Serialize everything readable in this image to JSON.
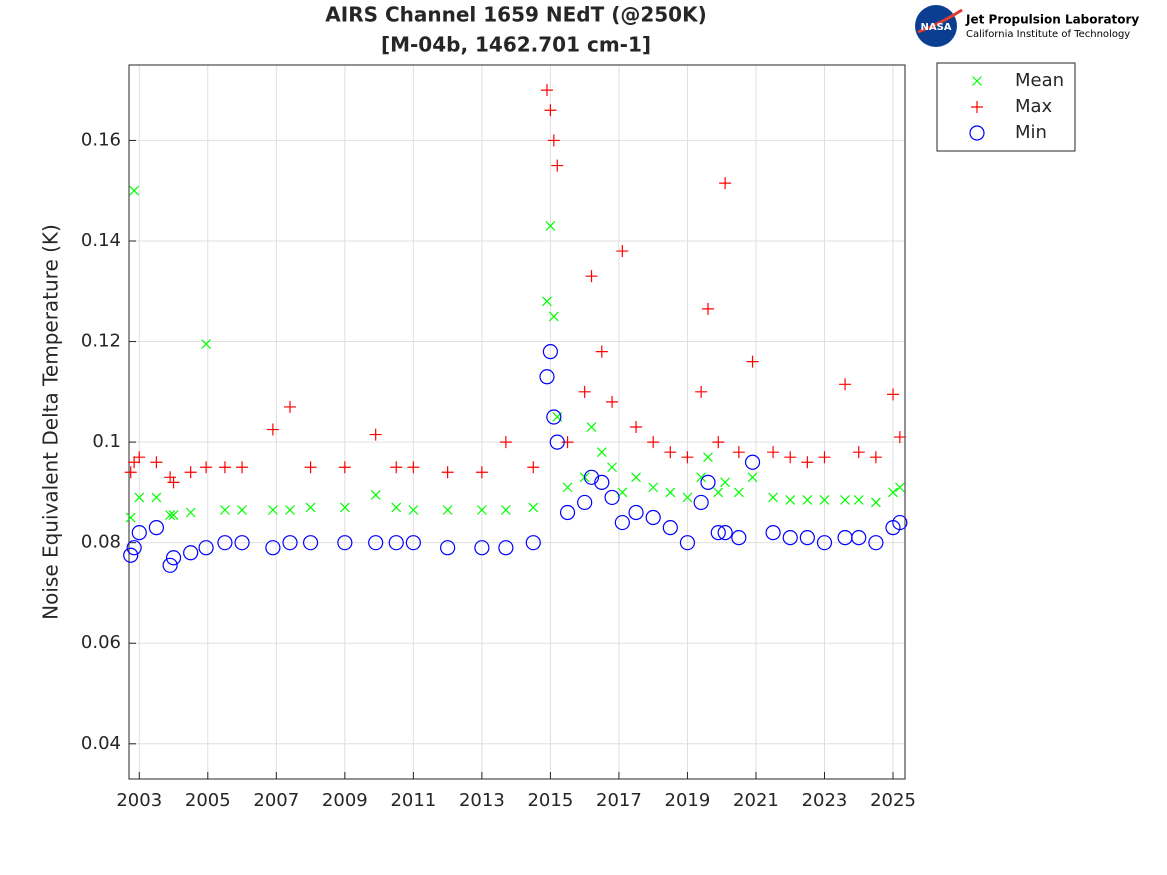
{
  "logo": {
    "badge": "NASA",
    "name": "Jet Propulsion Laboratory",
    "institute": "California Institute of Technology"
  },
  "chart_data": {
    "type": "scatter",
    "title": "AIRS Channel 1659 NEdT (@250K)",
    "subtitle": "[M-04b, 1462.701 cm-1]",
    "y_label": "Noise Equivalent Delta Temperature (K)",
    "xlim": [
      2002.7,
      2025.35
    ],
    "ylim": [
      0.033,
      0.175
    ],
    "xticks": [
      2003,
      2005,
      2007,
      2009,
      2011,
      2013,
      2015,
      2017,
      2019,
      2021,
      2023,
      2025
    ],
    "yticks": [
      0.04,
      0.06,
      0.08,
      0.1,
      0.12,
      0.14,
      0.16
    ],
    "grid": true,
    "legend": "outside-upper-right",
    "x": [
      2002.75,
      2002.85,
      2003.0,
      2003.5,
      2003.9,
      2004.0,
      2004.5,
      2004.95,
      2005.5,
      2006.0,
      2006.9,
      2007.4,
      2008.0,
      2009.0,
      2009.9,
      2010.5,
      2011.0,
      2012.0,
      2013.0,
      2013.7,
      2014.5,
      2014.9,
      2015.0,
      2015.1,
      2015.2,
      2015.5,
      2016.0,
      2016.2,
      2016.5,
      2016.8,
      2017.1,
      2017.5,
      2018.0,
      2018.5,
      2019.0,
      2019.4,
      2019.6,
      2019.9,
      2020.1,
      2020.5,
      2020.9,
      2021.5,
      2022.0,
      2022.5,
      2023.0,
      2023.6,
      2024.0,
      2024.5,
      2025.0,
      2025.2
    ],
    "series": [
      {
        "name": "Mean",
        "color": "#00ff00",
        "marker": "x",
        "values": [
          0.085,
          0.15,
          0.089,
          0.089,
          0.0855,
          0.0855,
          0.086,
          0.1195,
          0.0865,
          0.0865,
          0.0865,
          0.0865,
          0.087,
          0.087,
          0.0895,
          0.087,
          0.0865,
          0.0865,
          0.0865,
          0.0865,
          0.087,
          0.128,
          0.143,
          0.125,
          0.105,
          0.091,
          0.093,
          0.103,
          0.098,
          0.095,
          0.09,
          0.093,
          0.091,
          0.09,
          0.089,
          0.093,
          0.097,
          0.09,
          0.092,
          0.09,
          0.093,
          0.089,
          0.0885,
          0.0885,
          0.0885,
          0.0885,
          0.0885,
          0.088,
          0.09,
          0.091
        ]
      },
      {
        "name": "Max",
        "color": "#ff0000",
        "marker": "+",
        "values": [
          0.094,
          0.096,
          0.097,
          0.096,
          0.093,
          0.092,
          0.094,
          0.095,
          0.095,
          0.095,
          0.1025,
          0.107,
          0.095,
          0.095,
          0.1015,
          0.095,
          0.095,
          0.094,
          0.094,
          0.1,
          0.095,
          0.17,
          0.166,
          0.16,
          0.155,
          0.1,
          0.11,
          0.133,
          0.118,
          0.108,
          0.138,
          0.103,
          0.1,
          0.098,
          0.097,
          0.11,
          0.1265,
          0.1,
          0.1515,
          0.098,
          0.116,
          0.098,
          0.097,
          0.096,
          0.097,
          0.1115,
          0.098,
          0.097,
          0.1095,
          0.101
        ]
      },
      {
        "name": "Min",
        "color": "#0000ff",
        "marker": "o",
        "values": [
          0.0775,
          0.079,
          0.082,
          0.083,
          0.0755,
          0.077,
          0.078,
          0.079,
          0.08,
          0.08,
          0.079,
          0.08,
          0.08,
          0.08,
          0.08,
          0.08,
          0.08,
          0.079,
          0.079,
          0.079,
          0.08,
          0.113,
          0.118,
          0.105,
          0.1,
          0.086,
          0.088,
          0.093,
          0.092,
          0.089,
          0.084,
          0.086,
          0.085,
          0.083,
          0.08,
          0.088,
          0.092,
          0.082,
          0.082,
          0.081,
          0.096,
          0.082,
          0.081,
          0.081,
          0.08,
          0.081,
          0.081,
          0.08,
          0.083,
          0.084
        ]
      }
    ]
  }
}
